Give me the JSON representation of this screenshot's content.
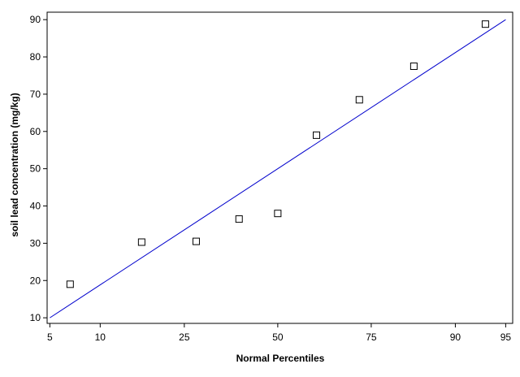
{
  "chart_data": {
    "type": "scatter",
    "title": "",
    "xlabel": "Normal Percentiles",
    "ylabel": "soil lead concentration (mg/kg)",
    "x_scale": "normal-probability",
    "x_ticks": [
      5,
      10,
      25,
      50,
      75,
      90,
      95
    ],
    "y_ticks": [
      10,
      20,
      30,
      40,
      50,
      60,
      70,
      80,
      90
    ],
    "xlim": [
      4.8,
      95.5
    ],
    "ylim": [
      8.5,
      92
    ],
    "grid": false,
    "legend": "none",
    "marker": "open-square",
    "colors": {
      "points": "#000000",
      "reference_line": "#0000cc",
      "axes": "#000000"
    },
    "series": [
      {
        "values": [
          {
            "x": 6.7,
            "y": 19.0
          },
          {
            "x": 16.3,
            "y": 30.3
          },
          {
            "x": 27.8,
            "y": 30.5
          },
          {
            "x": 39.0,
            "y": 36.5
          },
          {
            "x": 50.0,
            "y": 38.0
          },
          {
            "x": 61.0,
            "y": 59.0
          },
          {
            "x": 72.2,
            "y": 68.5
          },
          {
            "x": 83.7,
            "y": 77.5
          },
          {
            "x": 93.3,
            "y": 88.8
          }
        ]
      }
    ],
    "reference_line": {
      "from": {
        "x": 5,
        "y": 10
      },
      "to": {
        "x": 95,
        "y": 90
      }
    }
  }
}
